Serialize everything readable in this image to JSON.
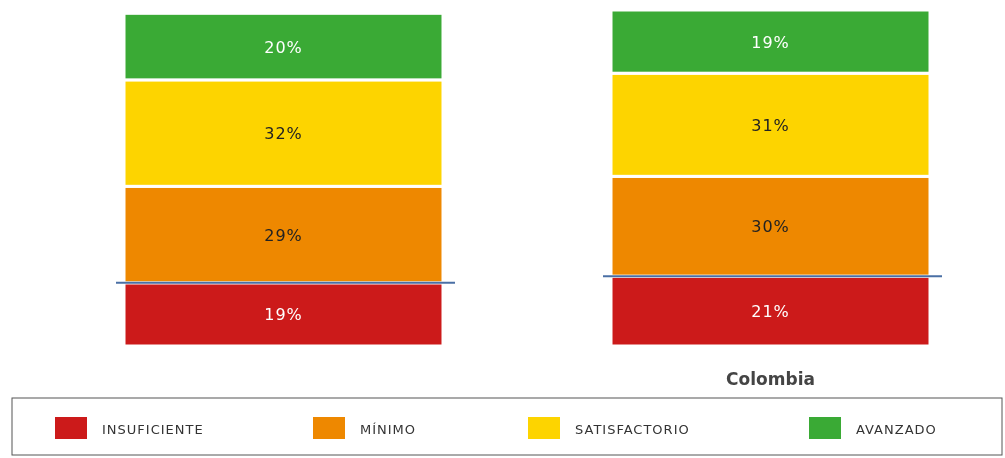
{
  "chart_data": {
    "type": "bar",
    "stacked": true,
    "categories": [
      null,
      "Colombia"
    ],
    "series": [
      {
        "name": "INSUFICIENTE",
        "color": "#cc1a1a",
        "values": [
          19,
          21
        ],
        "value_labels": [
          "19%",
          "21%"
        ]
      },
      {
        "name": "MÍNIMO",
        "color": "#ee8800",
        "values": [
          29,
          30
        ],
        "value_labels": [
          "29%",
          "30%"
        ]
      },
      {
        "name": "SATISFACTORIO",
        "color": "#fdd400",
        "values": [
          32,
          31
        ],
        "value_labels": [
          "32%",
          "31%"
        ]
      },
      {
        "name": "AVANZADO",
        "color": "#3aaa35",
        "values": [
          20,
          19
        ],
        "value_labels": [
          "20%",
          "19%"
        ]
      }
    ],
    "legend": "bottom",
    "relative": false
  }
}
